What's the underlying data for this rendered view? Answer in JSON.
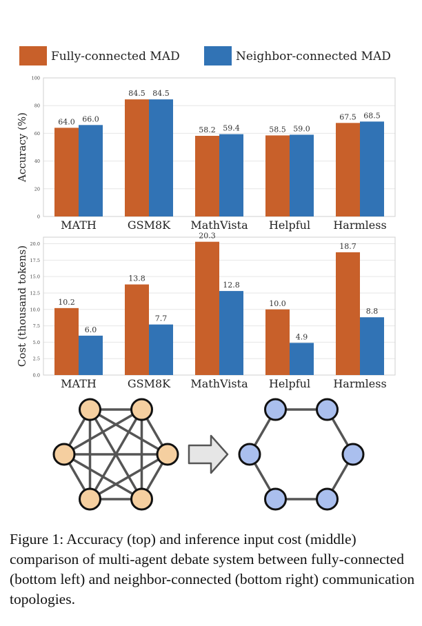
{
  "legend": {
    "entries": [
      {
        "label": "Fully-connected MAD",
        "color": "#c8602a"
      },
      {
        "label": "Neighbor-connected MAD",
        "color": "#3173b5"
      }
    ],
    "placement": "top"
  },
  "chart_data": [
    {
      "type": "bar",
      "categories": [
        "MATH",
        "GSM8K",
        "MathVista",
        "Helpful",
        "Harmless"
      ],
      "series": [
        {
          "name": "Fully-connected MAD",
          "values": [
            64.0,
            84.5,
            58.2,
            58.5,
            67.5
          ]
        },
        {
          "name": "Neighbor-connected MAD",
          "values": [
            66.0,
            84.5,
            59.4,
            59.0,
            68.5
          ]
        }
      ],
      "data_labels": [
        [
          "64.0",
          "84.5",
          "58.2",
          "58.5",
          "67.5"
        ],
        [
          "66.0",
          "84.5",
          "59.4",
          "59.0",
          "68.5"
        ]
      ],
      "ylabel": "Accuracy (%)",
      "ylim": [
        0,
        100
      ],
      "yticks": [
        "0",
        "20",
        "40",
        "60",
        "80",
        "100"
      ],
      "grid": true
    },
    {
      "type": "bar",
      "categories": [
        "MATH",
        "GSM8K",
        "MathVista",
        "Helpful",
        "Harmless"
      ],
      "series": [
        {
          "name": "Fully-connected MAD",
          "values": [
            10.2,
            13.8,
            20.3,
            10.0,
            18.7
          ]
        },
        {
          "name": "Neighbor-connected MAD",
          "values": [
            6.0,
            7.7,
            12.8,
            4.9,
            8.8
          ]
        }
      ],
      "data_labels": [
        [
          "10.2",
          "13.8",
          "20.3",
          "10.0",
          "18.7"
        ],
        [
          "6.0",
          "7.7",
          "12.8",
          "4.9",
          "8.8"
        ]
      ],
      "ylabel": "Cost (thousand tokens)",
      "ylim": [
        0,
        21
      ],
      "yticks": [
        "0.0",
        "2.5",
        "5.0",
        "7.5",
        "10.0",
        "12.5",
        "15.0",
        "17.5",
        "20.0"
      ],
      "grid": true
    }
  ],
  "topologies": {
    "fully_connected": {
      "node_fill": "#f5cfa0",
      "edge_color": "#555555"
    },
    "neighbor_connected": {
      "node_fill": "#aabfee",
      "edge_color": "#555555"
    },
    "arrow_fill": "#e6e6e6"
  },
  "caption": "Figure 1: Accuracy (top) and inference input cost (middle) comparison of multi-agent debate system between fully-connected (bottom left) and neighbor-connected (bottom right) communication topologies."
}
